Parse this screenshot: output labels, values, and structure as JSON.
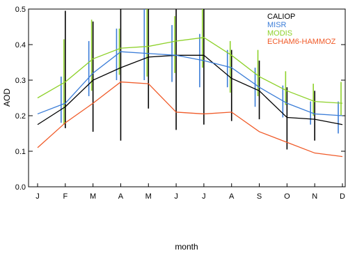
{
  "chart_data": {
    "type": "line",
    "xlabel": "month",
    "ylabel": "AOD",
    "ylim": [
      0,
      0.5
    ],
    "yticks": [
      "0.0",
      "0.1",
      "0.2",
      "0.3",
      "0.4",
      "0.5"
    ],
    "categories": [
      "J",
      "F",
      "M",
      "A",
      "M",
      "J",
      "J",
      "A",
      "S",
      "O",
      "N",
      "D"
    ],
    "grid": false,
    "legend_position": "top-right",
    "series": [
      {
        "name": "CALIOP",
        "color": "#000000",
        "values": [
          0.175,
          0.225,
          0.3,
          0.335,
          0.365,
          0.37,
          0.37,
          0.305,
          0.27,
          0.195,
          0.19,
          0.175
        ],
        "error_low": [
          null,
          0.165,
          0.155,
          0.13,
          0.22,
          0.16,
          0.175,
          0.185,
          0.19,
          0.105,
          0.13,
          null
        ],
        "error_high": [
          null,
          0.495,
          0.465,
          0.5,
          0.5,
          0.5,
          0.5,
          0.385,
          0.355,
          0.28,
          0.27,
          null
        ]
      },
      {
        "name": "MISR",
        "color": "#3b7dd8",
        "values": [
          0.205,
          0.235,
          0.32,
          0.38,
          0.375,
          0.37,
          0.355,
          0.335,
          0.28,
          0.235,
          0.205,
          0.2
        ],
        "error_low": [
          null,
          0.18,
          0.255,
          0.3,
          0.3,
          0.295,
          0.28,
          0.28,
          0.225,
          0.195,
          0.175,
          0.15
        ],
        "error_high": [
          null,
          0.31,
          0.41,
          0.445,
          0.5,
          0.455,
          0.43,
          0.385,
          0.335,
          0.285,
          0.24,
          0.24
        ]
      },
      {
        "name": "MODIS",
        "color": "#8ed12a",
        "values": [
          0.25,
          0.295,
          0.36,
          0.39,
          0.395,
          0.41,
          0.42,
          0.37,
          0.31,
          0.27,
          0.24,
          0.235
        ],
        "error_low": [
          null,
          0.175,
          0.27,
          0.315,
          0.31,
          0.32,
          0.335,
          0.265,
          0.255,
          0.23,
          0.2,
          0.2
        ],
        "error_high": [
          null,
          0.415,
          0.47,
          0.445,
          0.5,
          0.48,
          0.5,
          0.41,
          0.385,
          0.325,
          0.29,
          0.295
        ]
      },
      {
        "name": "ECHAM6-HAMMOZ",
        "color": "#f05a28",
        "values": [
          0.11,
          0.18,
          0.235,
          0.295,
          0.29,
          0.21,
          0.205,
          0.21,
          0.155,
          0.125,
          0.095,
          0.085
        ],
        "error_low": [
          null,
          null,
          null,
          null,
          null,
          null,
          null,
          null,
          null,
          null,
          null,
          null
        ],
        "error_high": [
          null,
          null,
          null,
          null,
          null,
          null,
          null,
          null,
          null,
          null,
          null,
          null
        ]
      }
    ]
  }
}
